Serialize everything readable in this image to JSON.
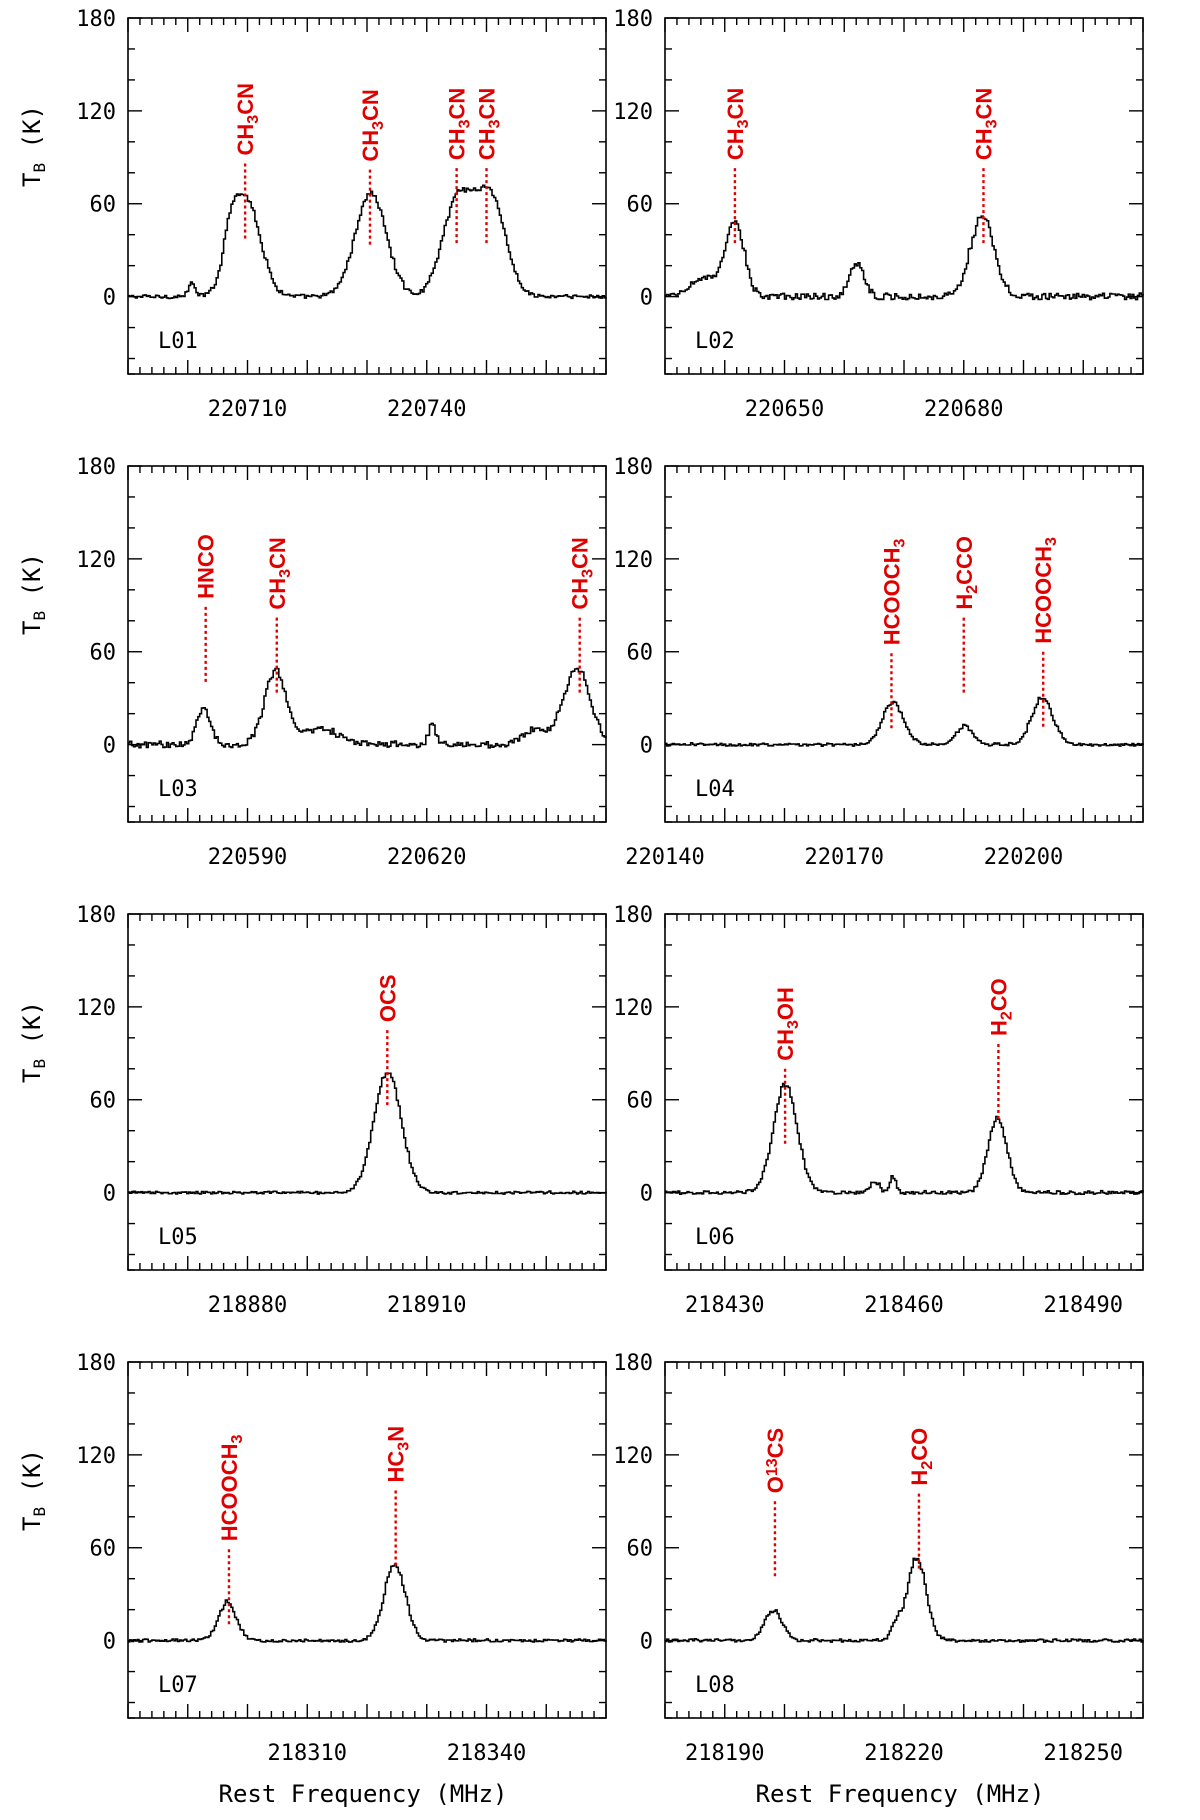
{
  "chart_data": {
    "type": "line",
    "xlabel": "Rest Frequency (MHz)",
    "ylabel_main": "T",
    "ylabel_sub": "B",
    "ylabel_unit": " (K)",
    "panels": [
      {
        "id": "L01",
        "xlim": [
          220690,
          220770
        ],
        "ylim": [
          -50,
          180
        ],
        "xticks": [
          220710,
          220740
        ],
        "yticks": [
          0,
          60,
          120,
          180
        ],
        "noise": 1.2,
        "peaks": [
          {
            "f": 220709.6,
            "a": 63,
            "w": 2.4
          },
          {
            "f": 220707.0,
            "a": 22,
            "w": 1.2
          },
          {
            "f": 220730.5,
            "a": 67,
            "w": 2.6
          },
          {
            "f": 220745.0,
            "a": 62,
            "w": 2.5
          },
          {
            "f": 220750.5,
            "a": 64,
            "w": 2.5
          },
          {
            "f": 220700.5,
            "a": 8,
            "w": 0.6
          }
        ],
        "lines": [
          {
            "f": 220709.6,
            "top": 86,
            "parts": [
              [
                "CH",
                false
              ],
              [
                "3",
                true
              ],
              [
                "CN",
                false
              ]
            ]
          },
          {
            "f": 220730.5,
            "top": 82,
            "parts": [
              [
                "CH",
                false
              ],
              [
                "3",
                true
              ],
              [
                "CN",
                false
              ]
            ]
          },
          {
            "f": 220745.0,
            "top": 83,
            "parts": [
              [
                "CH",
                false
              ],
              [
                "3",
                true
              ],
              [
                "CN",
                false
              ]
            ]
          },
          {
            "f": 220750.0,
            "top": 83,
            "parts": [
              [
                "CH",
                false
              ],
              [
                "3",
                true
              ],
              [
                "CN",
                false
              ]
            ]
          }
        ]
      },
      {
        "id": "L02",
        "xlim": [
          220630,
          220710
        ],
        "ylim": [
          -50,
          180
        ],
        "xticks": [
          220650,
          220680
        ],
        "yticks": [
          0,
          60,
          120,
          180
        ],
        "noise": 2.0,
        "peaks": [
          {
            "f": 220641.5,
            "a": 48,
            "w": 1.6
          },
          {
            "f": 220636.0,
            "a": 12,
            "w": 2.0
          },
          {
            "f": 220662.0,
            "a": 22,
            "w": 1.2
          },
          {
            "f": 220683.0,
            "a": 52,
            "w": 2.0
          }
        ],
        "lines": [
          {
            "f": 220641.7,
            "top": 83,
            "parts": [
              [
                "CH",
                false
              ],
              [
                "3",
                true
              ],
              [
                "CN",
                false
              ]
            ]
          },
          {
            "f": 220683.3,
            "top": 83,
            "parts": [
              [
                "CH",
                false
              ],
              [
                "3",
                true
              ],
              [
                "CN",
                false
              ]
            ]
          }
        ]
      },
      {
        "id": "L03",
        "xlim": [
          220570,
          220650
        ],
        "ylim": [
          -50,
          180
        ],
        "xticks": [
          220590,
          220620
        ],
        "yticks": [
          0,
          60,
          120,
          180
        ],
        "noise": 2.0,
        "peaks": [
          {
            "f": 220582.5,
            "a": 22,
            "w": 1.2
          },
          {
            "f": 220594.5,
            "a": 48,
            "w": 1.8
          },
          {
            "f": 220602.0,
            "a": 11,
            "w": 3.0
          },
          {
            "f": 220620.8,
            "a": 14,
            "w": 0.6
          },
          {
            "f": 220638.0,
            "a": 10,
            "w": 2.0
          },
          {
            "f": 220645.0,
            "a": 50,
            "w": 2.2
          }
        ],
        "lines": [
          {
            "f": 220583.0,
            "top": 89,
            "parts": [
              [
                "HNCO",
                false
              ]
            ]
          },
          {
            "f": 220594.9,
            "top": 82,
            "parts": [
              [
                "CH",
                false
              ],
              [
                "3",
                true
              ],
              [
                "CN",
                false
              ]
            ]
          },
          {
            "f": 220645.6,
            "top": 82,
            "parts": [
              [
                "CH",
                false
              ],
              [
                "3",
                true
              ],
              [
                "CN",
                false
              ]
            ]
          }
        ]
      },
      {
        "id": "L04",
        "xlim": [
          220140,
          220220
        ],
        "ylim": [
          -50,
          180
        ],
        "xticks": [
          220140,
          220170,
          220200
        ],
        "yticks": [
          0,
          60,
          120,
          180
        ],
        "noise": 0.9,
        "peaks": [
          {
            "f": 220178.0,
            "a": 27,
            "w": 1.8
          },
          {
            "f": 220190.0,
            "a": 12,
            "w": 1.3
          },
          {
            "f": 220203.0,
            "a": 30,
            "w": 1.8
          }
        ],
        "lines": [
          {
            "f": 220177.9,
            "top": 59,
            "parts": [
              [
                "HCOOCH",
                false
              ],
              [
                "3",
                true
              ]
            ]
          },
          {
            "f": 220190.0,
            "top": 82,
            "parts": [
              [
                "H",
                false
              ],
              [
                "2",
                true
              ],
              [
                "CCO",
                false
              ]
            ]
          },
          {
            "f": 220203.3,
            "top": 60,
            "parts": [
              [
                "HCOOCH",
                false
              ],
              [
                "3",
                true
              ]
            ]
          }
        ]
      },
      {
        "id": "L05",
        "xlim": [
          218860,
          218940
        ],
        "ylim": [
          -50,
          180
        ],
        "xticks": [
          218880,
          218910
        ],
        "yticks": [
          0,
          60,
          120,
          180
        ],
        "noise": 0.8,
        "peaks": [
          {
            "f": 218903.3,
            "a": 78,
            "w": 2.3
          }
        ],
        "lines": [
          {
            "f": 218903.4,
            "top": 105,
            "parts": [
              [
                "OCS",
                false
              ]
            ]
          }
        ]
      },
      {
        "id": "L06",
        "xlim": [
          218420,
          218500
        ],
        "ylim": [
          -50,
          180
        ],
        "xticks": [
          218430,
          218460,
          218490
        ],
        "yticks": [
          0,
          60,
          120,
          180
        ],
        "noise": 1.0,
        "peaks": [
          {
            "f": 218440.0,
            "a": 70,
            "w": 2.0
          },
          {
            "f": 218455.0,
            "a": 7,
            "w": 0.8
          },
          {
            "f": 218458.0,
            "a": 10,
            "w": 0.5
          },
          {
            "f": 218475.5,
            "a": 48,
            "w": 1.6
          }
        ],
        "lines": [
          {
            "f": 218440.1,
            "top": 80,
            "parts": [
              [
                "CH",
                false
              ],
              [
                "3",
                true
              ],
              [
                "OH",
                false
              ]
            ]
          },
          {
            "f": 218475.8,
            "top": 96,
            "parts": [
              [
                "H",
                false
              ],
              [
                "2",
                true
              ],
              [
                "CO",
                false
              ]
            ]
          }
        ]
      },
      {
        "id": "L07",
        "xlim": [
          218280,
          218360
        ],
        "ylim": [
          -50,
          180
        ],
        "xticks": [
          218310,
          218340
        ],
        "yticks": [
          0,
          60,
          120,
          180
        ],
        "noise": 0.9,
        "peaks": [
          {
            "f": 218296.5,
            "a": 25,
            "w": 1.5
          },
          {
            "f": 218324.5,
            "a": 49,
            "w": 1.8
          }
        ],
        "lines": [
          {
            "f": 218296.9,
            "top": 59,
            "parts": [
              [
                "HCOOCH",
                false
              ],
              [
                "3",
                true
              ]
            ]
          },
          {
            "f": 218324.8,
            "top": 97,
            "parts": [
              [
                "HC",
                false
              ],
              [
                "3",
                true
              ],
              [
                "N",
                false
              ]
            ]
          }
        ]
      },
      {
        "id": "L08",
        "xlim": [
          218180,
          218260
        ],
        "ylim": [
          -50,
          180
        ],
        "xticks": [
          218190,
          218220,
          218250
        ],
        "yticks": [
          0,
          60,
          120,
          180
        ],
        "noise": 0.9,
        "peaks": [
          {
            "f": 218198.0,
            "a": 19,
            "w": 1.5
          },
          {
            "f": 218218.5,
            "a": 9,
            "w": 0.8
          },
          {
            "f": 218222.0,
            "a": 54,
            "w": 1.6
          }
        ],
        "lines": [
          {
            "f": 218198.4,
            "top": 90,
            "parts": [
              [
                "O",
                false
              ],
              [
                "13",
                "sup"
              ],
              [
                "CS",
                false
              ]
            ]
          },
          {
            "f": 218222.5,
            "top": 95,
            "parts": [
              [
                "H",
                false
              ],
              [
                "2",
                true
              ],
              [
                "CO",
                false
              ]
            ]
          }
        ]
      }
    ]
  }
}
